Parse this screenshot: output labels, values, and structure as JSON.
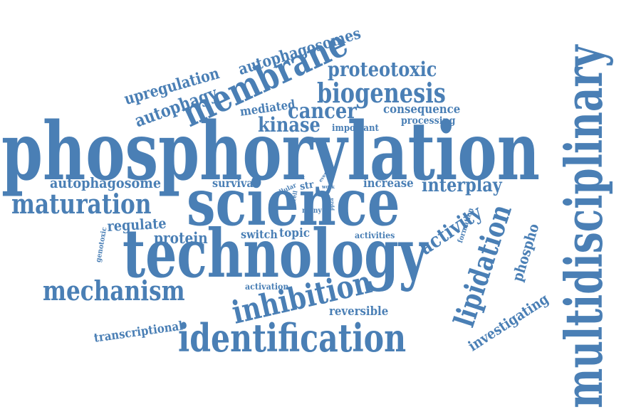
{
  "colors": {
    "word": "#4a7fb5",
    "background": "#ffffff"
  },
  "words": [
    "phosphorylation",
    "science",
    "technology",
    "multidisciplinary",
    "identification",
    "membrane",
    "inhibition",
    "mechanism",
    "maturation",
    "biogenesis",
    "lipidation",
    "proteotoxic",
    "autophagosomes",
    "autophagy",
    "upregulation",
    "cancer",
    "kinase",
    "mediated",
    "consequence",
    "processing",
    "important",
    "autophagosome",
    "interplay",
    "survival",
    "increase",
    "activity",
    "phospho",
    "investigating",
    "regulate",
    "protein",
    "switch",
    "topic",
    "activities",
    "activation",
    "reversible",
    "transcriptional",
    "formation",
    "genotoxic",
    "cellular",
    "str",
    "many",
    "result",
    "event",
    "work",
    "cell",
    "pp2a"
  ]
}
